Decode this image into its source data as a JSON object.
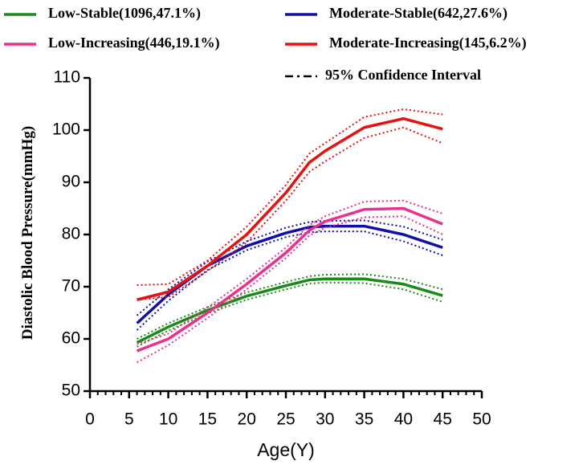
{
  "chart_data": {
    "type": "line",
    "x_label": "Age(Y)",
    "y_label": "Diastolic Blood Pressure(mmHg)",
    "ci_label": "95% Confidence Interval",
    "ci_color": "#000000",
    "x": [
      6,
      10,
      15,
      20,
      25,
      28,
      30,
      35,
      40,
      45
    ],
    "series": [
      {
        "name": "Low-Stable(1096,47.1%)",
        "color": "#1a8a1a",
        "values": [
          59.3,
          62.3,
          65.5,
          68.2,
          70.2,
          71.3,
          71.5,
          71.5,
          70.5,
          68.3
        ],
        "ci_upper": [
          60.0,
          63.0,
          66.1,
          68.9,
          70.9,
          72.0,
          72.3,
          72.4,
          71.5,
          69.5
        ],
        "ci_lower": [
          58.5,
          61.6,
          64.9,
          67.5,
          69.5,
          70.6,
          70.8,
          70.7,
          69.5,
          67.1
        ]
      },
      {
        "name": "Moderate-Stable(642,27.6%)",
        "color": "#1010a8",
        "values": [
          63.0,
          68.5,
          74.0,
          77.8,
          80.3,
          81.4,
          81.6,
          81.6,
          80.0,
          77.5
        ],
        "ci_upper": [
          64.5,
          69.5,
          74.8,
          78.7,
          81.3,
          82.4,
          82.6,
          82.7,
          81.5,
          79.0
        ],
        "ci_lower": [
          61.7,
          67.3,
          73.2,
          77.0,
          79.5,
          80.4,
          80.6,
          80.6,
          78.7,
          76.0
        ]
      },
      {
        "name": "Low-Increasing(446,19.1%)",
        "color": "#e8308c",
        "values": [
          57.7,
          60.0,
          65.0,
          70.5,
          76.5,
          80.8,
          82.5,
          84.8,
          85.0,
          82.0
        ],
        "ci_upper": [
          59.0,
          61.0,
          66.0,
          71.5,
          77.5,
          81.8,
          83.5,
          86.3,
          86.5,
          84.0
        ],
        "ci_lower": [
          55.5,
          58.8,
          64.0,
          69.5,
          75.5,
          79.8,
          81.3,
          83.3,
          83.5,
          80.0
        ]
      },
      {
        "name": "Moderate-Increasing(145,6.2%)",
        "color": "#e81010",
        "values": [
          67.5,
          69.0,
          74.0,
          80.0,
          88.0,
          93.8,
          96.0,
          100.5,
          102.2,
          100.2
        ],
        "ci_upper": [
          70.3,
          70.5,
          75.0,
          81.5,
          89.5,
          95.5,
          97.5,
          102.5,
          104.0,
          103.0
        ],
        "ci_lower": [
          67.5,
          68.0,
          73.0,
          78.5,
          86.5,
          92.0,
          94.0,
          98.5,
          100.5,
          97.5
        ]
      }
    ],
    "xlim": [
      0,
      50
    ],
    "xticks": [
      0,
      5,
      10,
      15,
      20,
      25,
      30,
      35,
      40,
      45,
      50
    ],
    "xminorticks": [
      1,
      2,
      3,
      4,
      6,
      7,
      8,
      9,
      11,
      12,
      13,
      14,
      16,
      17,
      18,
      19,
      21,
      22,
      23,
      24,
      26,
      27,
      28,
      29,
      31,
      32,
      33,
      34,
      36,
      37,
      38,
      39,
      41,
      42,
      43,
      44,
      46,
      47,
      48,
      49
    ],
    "ylim": [
      50,
      110
    ],
    "yticks": [
      50,
      60,
      70,
      80,
      90,
      100,
      110
    ]
  }
}
